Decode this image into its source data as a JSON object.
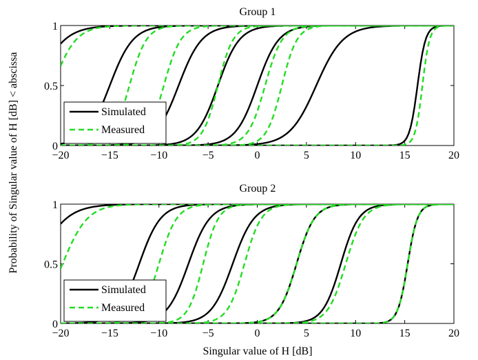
{
  "ylabel": "Probability of Singular value of H [dB] < abscissa",
  "xlabel": "Singular value of H [dB]",
  "colors": {
    "simulated": "#000000",
    "measured": "#22dd22"
  },
  "chart_data": [
    {
      "type": "line",
      "title": "Group 1",
      "xlim": [
        -20,
        20
      ],
      "ylim": [
        0,
        1
      ],
      "xticks": [
        -20,
        -15,
        -10,
        -5,
        0,
        5,
        10,
        15,
        20
      ],
      "yticks": [
        0,
        0.5,
        1
      ],
      "ytick_labels": [
        "0",
        "0.5",
        "1"
      ],
      "legend": {
        "position": "bottom-left",
        "entries": [
          "Simulated",
          "Measured"
        ]
      },
      "series": [
        {
          "name": "Simulated",
          "style": "solid",
          "curves": [
            {
              "x0": -22.5,
              "w": 3.2
            },
            {
              "x0": -15.0,
              "w": 2.6
            },
            {
              "x0": -8.0,
              "w": 2.6
            },
            {
              "x0": -4.0,
              "w": 2.4
            },
            {
              "x0": 0.0,
              "w": 2.4
            },
            {
              "x0": 6.0,
              "w": 3.0
            },
            {
              "x0": 16.3,
              "w": 0.9
            }
          ]
        },
        {
          "name": "Measured",
          "style": "dashed",
          "curves": [
            {
              "x0": -20.8,
              "w": 2.6
            },
            {
              "x0": -13.0,
              "w": 1.9
            },
            {
              "x0": -9.5,
              "w": 1.9
            },
            {
              "x0": -4.0,
              "w": 1.7
            },
            {
              "x0": 0.8,
              "w": 1.9
            },
            {
              "x0": 2.5,
              "w": 1.7
            },
            {
              "x0": 16.8,
              "w": 0.8
            }
          ]
        }
      ]
    },
    {
      "type": "line",
      "title": "Group 2",
      "xlim": [
        -20,
        20
      ],
      "ylim": [
        0,
        1
      ],
      "xticks": [
        -20,
        -15,
        -10,
        -5,
        0,
        5,
        10,
        15,
        20
      ],
      "yticks": [
        0,
        0.5,
        1
      ],
      "ytick_labels": [
        "0",
        "0.5",
        "1"
      ],
      "legend": {
        "position": "bottom-left",
        "entries": [
          "Simulated",
          "Measured"
        ]
      },
      "series": [
        {
          "name": "Simulated",
          "style": "solid",
          "curves": [
            {
              "x0": -22.5,
              "w": 3.4
            },
            {
              "x0": -12.0,
              "w": 2.4
            },
            {
              "x0": -7.0,
              "w": 2.4
            },
            {
              "x0": -2.5,
              "w": 2.4
            },
            {
              "x0": 4.0,
              "w": 2.0
            },
            {
              "x0": 8.5,
              "w": 2.0
            },
            {
              "x0": 15.3,
              "w": 1.1
            }
          ]
        },
        {
          "name": "Measured",
          "style": "dashed",
          "curves": [
            {
              "x0": -19.8,
              "w": 2.8
            },
            {
              "x0": -10.0,
              "w": 2.0
            },
            {
              "x0": -5.5,
              "w": 1.7
            },
            {
              "x0": -1.3,
              "w": 1.9
            },
            {
              "x0": 4.0,
              "w": 2.0
            },
            {
              "x0": 9.0,
              "w": 2.0
            },
            {
              "x0": 15.3,
              "w": 1.1
            }
          ]
        }
      ]
    }
  ]
}
